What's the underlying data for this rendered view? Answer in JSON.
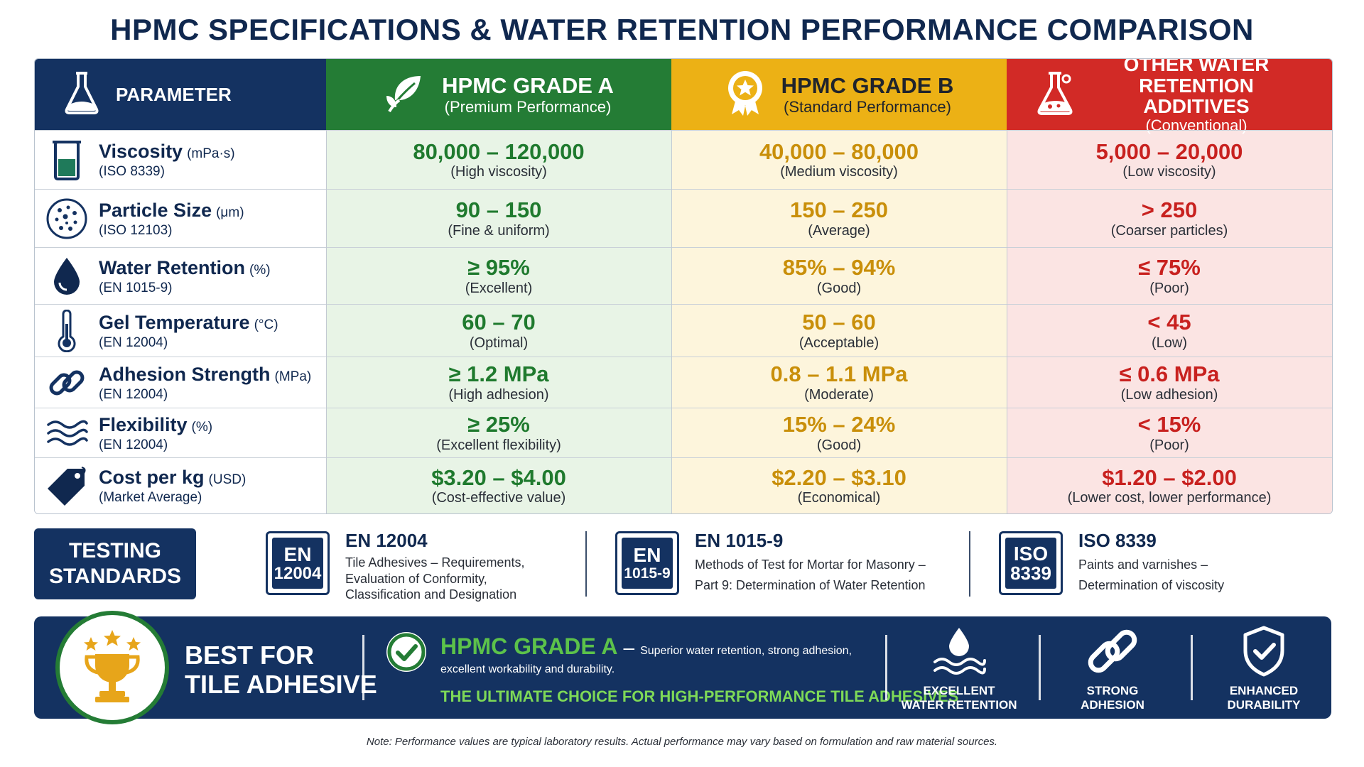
{
  "title": "HPMC SPECIFICATIONS & WATER RETENTION PERFORMANCE COMPARISON",
  "table": {
    "headers": [
      {
        "name": "PARAMETER",
        "sub": "",
        "icon": "flask-icon"
      },
      {
        "name": "HPMC GRADE A",
        "sub": "(Premium Performance)",
        "icon": "leaf-icon",
        "color": "#247c35"
      },
      {
        "name": "HPMC GRADE B",
        "sub": "(Standard Performance)",
        "icon": "award-icon",
        "color": "#ecb115"
      },
      {
        "name": "OTHER WATER RETENTION ADDITIVES",
        "sub": "(Conventional)",
        "icon": "flask-icon",
        "color": "#d22a26"
      }
    ],
    "rows": [
      {
        "param": "Viscosity",
        "unit": "(mPa·s)",
        "std": "(ISO 8339)",
        "icon": "beaker-icon",
        "a": "80,000 – 120,000",
        "a_note": "(High viscosity)",
        "b": "40,000 – 80,000",
        "b_note": "(Medium viscosity)",
        "c": "5,000 – 20,000",
        "c_note": "(Low viscosity)"
      },
      {
        "param": "Particle Size",
        "unit": "(μm)",
        "std": "(ISO 12103)",
        "icon": "particles-icon",
        "a": "90 – 150",
        "a_note": "(Fine & uniform)",
        "b": "150 – 250",
        "b_note": "(Average)",
        "c": "> 250",
        "c_note": "(Coarser particles)"
      },
      {
        "param": "Water Retention",
        "unit": "(%)",
        "std": "(EN 1015-9)",
        "icon": "water-drop-icon",
        "a": "≥ 95%",
        "a_note": "(Excellent)",
        "b": "85% – 94%",
        "b_note": "(Good)",
        "c": "≤ 75%",
        "c_note": "(Poor)"
      },
      {
        "param": "Gel Temperature",
        "unit": "(°C)",
        "std": "(EN 12004)",
        "icon": "thermometer-icon",
        "a": "60 – 70",
        "a_note": "(Optimal)",
        "b": "50 – 60",
        "b_note": "(Acceptable)",
        "c": "< 45",
        "c_note": "(Low)"
      },
      {
        "param": "Adhesion Strength",
        "unit": "(MPa)",
        "std": "(EN 12004)",
        "icon": "chain-link-icon",
        "a": "≥ 1.2 MPa",
        "a_note": "(High adhesion)",
        "b": "0.8 – 1.1 MPa",
        "b_note": "(Moderate)",
        "c": "≤ 0.6 MPa",
        "c_note": "(Low adhesion)"
      },
      {
        "param": "Flexibility",
        "unit": "(%)",
        "std": "(EN 12004)",
        "icon": "waves-icon",
        "a": "≥ 25%",
        "a_note": "(Excellent flexibility)",
        "b": "15% – 24%",
        "b_note": "(Good)",
        "c": "< 15%",
        "c_note": "(Poor)"
      },
      {
        "param": "Cost per kg",
        "unit": "(USD)",
        "std": "(Market Average)",
        "icon": "price-tag-icon",
        "a": "$3.20 – $4.00",
        "a_note": "(Cost-effective value)",
        "b": "$2.20 – $3.10",
        "b_note": "(Economical)",
        "c": "$1.20 – $2.00",
        "c_note": "(Lower cost, lower performance)"
      }
    ]
  },
  "standards": {
    "label_line1": "TESTING",
    "label_line2": "STANDARDS",
    "items": [
      {
        "badge1": "EN",
        "badge2": "12004",
        "code": "EN 12004",
        "desc1": "Tile Adhesives – Requirements,",
        "desc2": "Evaluation of Conformity,",
        "desc3": "Classification and Designation"
      },
      {
        "badge1": "EN",
        "badge2": "1015-9",
        "code": "EN 1015-9",
        "desc1": "Methods of Test for Mortar for Masonry –",
        "desc2": "Part 9: Determination of Water Retention"
      },
      {
        "badge1": "ISO",
        "badge2": "8339",
        "code": "ISO 8339",
        "desc1": "Paints and varnishes –",
        "desc2": "Determination of viscosity"
      }
    ]
  },
  "banner": {
    "best_line1": "BEST FOR",
    "best_line2": "TILE ADHESIVE",
    "grade": "HPMC GRADE A",
    "dash": "–",
    "desc1": "Superior water retention, strong adhesion,",
    "desc2": "excellent workability and durability.",
    "tagline": "THE ULTIMATE CHOICE FOR HIGH-PERFORMANCE TILE ADHESIVES",
    "features": [
      {
        "line1": "EXCELLENT",
        "line2": "WATER RETENTION",
        "icon": "water-drop-icon"
      },
      {
        "line1": "STRONG",
        "line2": "ADHESION",
        "icon": "chain-link-icon"
      },
      {
        "line1": "ENHANCED",
        "line2": "DURABILITY",
        "icon": "shield-check-icon"
      }
    ]
  },
  "footnote": "Note: Performance values are typical laboratory results. Actual performance may vary based on formulation and raw material sources."
}
